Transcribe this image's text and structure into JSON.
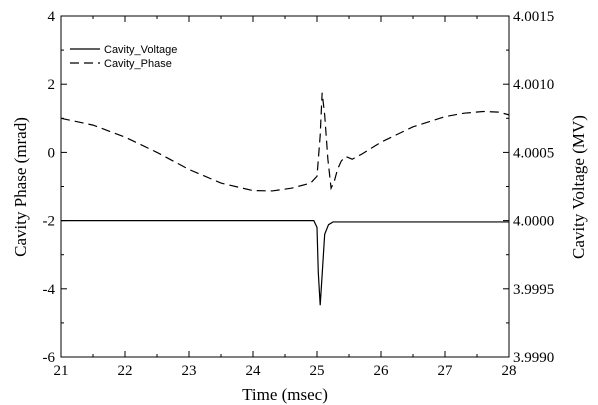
{
  "chart_data": {
    "type": "line",
    "xlabel": "Time (msec)",
    "ylabel_left": "Cavity Phase (mrad)",
    "ylabel_right": "Cavity Voltage (MV)",
    "xlim": [
      21,
      28
    ],
    "ylim_left": [
      -6,
      4
    ],
    "ylim_right": [
      3.999,
      4.0015
    ],
    "x_ticks": [
      "21",
      "22",
      "23",
      "24",
      "25",
      "26",
      "27",
      "28"
    ],
    "y_left_ticks": [
      "-6",
      "-4",
      "-2",
      "0",
      "2",
      "4"
    ],
    "y_right_ticks": [
      "3.9990",
      "3.9995",
      "4.0000",
      "4.0005",
      "4.0010",
      "4.0015"
    ],
    "grid": false,
    "legend_position": "top-left",
    "series": [
      {
        "name": "Cavity_Voltage",
        "axis": "right",
        "style": "solid",
        "color": "#000000",
        "x": [
          21.0,
          22.0,
          23.0,
          24.0,
          24.95,
          25.0,
          25.02,
          25.05,
          25.08,
          25.12,
          25.18,
          25.25,
          25.4,
          26.0,
          27.0,
          28.0
        ],
        "y": [
          4.0,
          4.0,
          4.0,
          4.0,
          4.0,
          3.99995,
          3.99962,
          3.99938,
          3.9996,
          3.9999,
          3.99997,
          3.99999,
          3.99999,
          3.99999,
          3.99999,
          3.99999
        ]
      },
      {
        "name": "Cavity_Phase",
        "axis": "left",
        "style": "dashed",
        "color": "#000000",
        "x": [
          21.0,
          21.5,
          22.0,
          22.5,
          23.0,
          23.5,
          24.0,
          24.3,
          24.6,
          24.9,
          25.0,
          25.05,
          25.08,
          25.12,
          25.17,
          25.22,
          25.27,
          25.32,
          25.38,
          25.45,
          25.55,
          25.7,
          26.0,
          26.5,
          27.0,
          27.3,
          27.6,
          27.85,
          28.0
        ],
        "y": [
          1.0,
          0.8,
          0.45,
          0.0,
          -0.5,
          -0.9,
          -1.12,
          -1.13,
          -1.05,
          -0.9,
          -0.7,
          0.5,
          1.75,
          1.1,
          -0.2,
          -1.05,
          -0.85,
          -0.5,
          -0.25,
          -0.12,
          -0.2,
          -0.05,
          0.3,
          0.75,
          1.05,
          1.15,
          1.2,
          1.18,
          1.1
        ]
      }
    ]
  }
}
